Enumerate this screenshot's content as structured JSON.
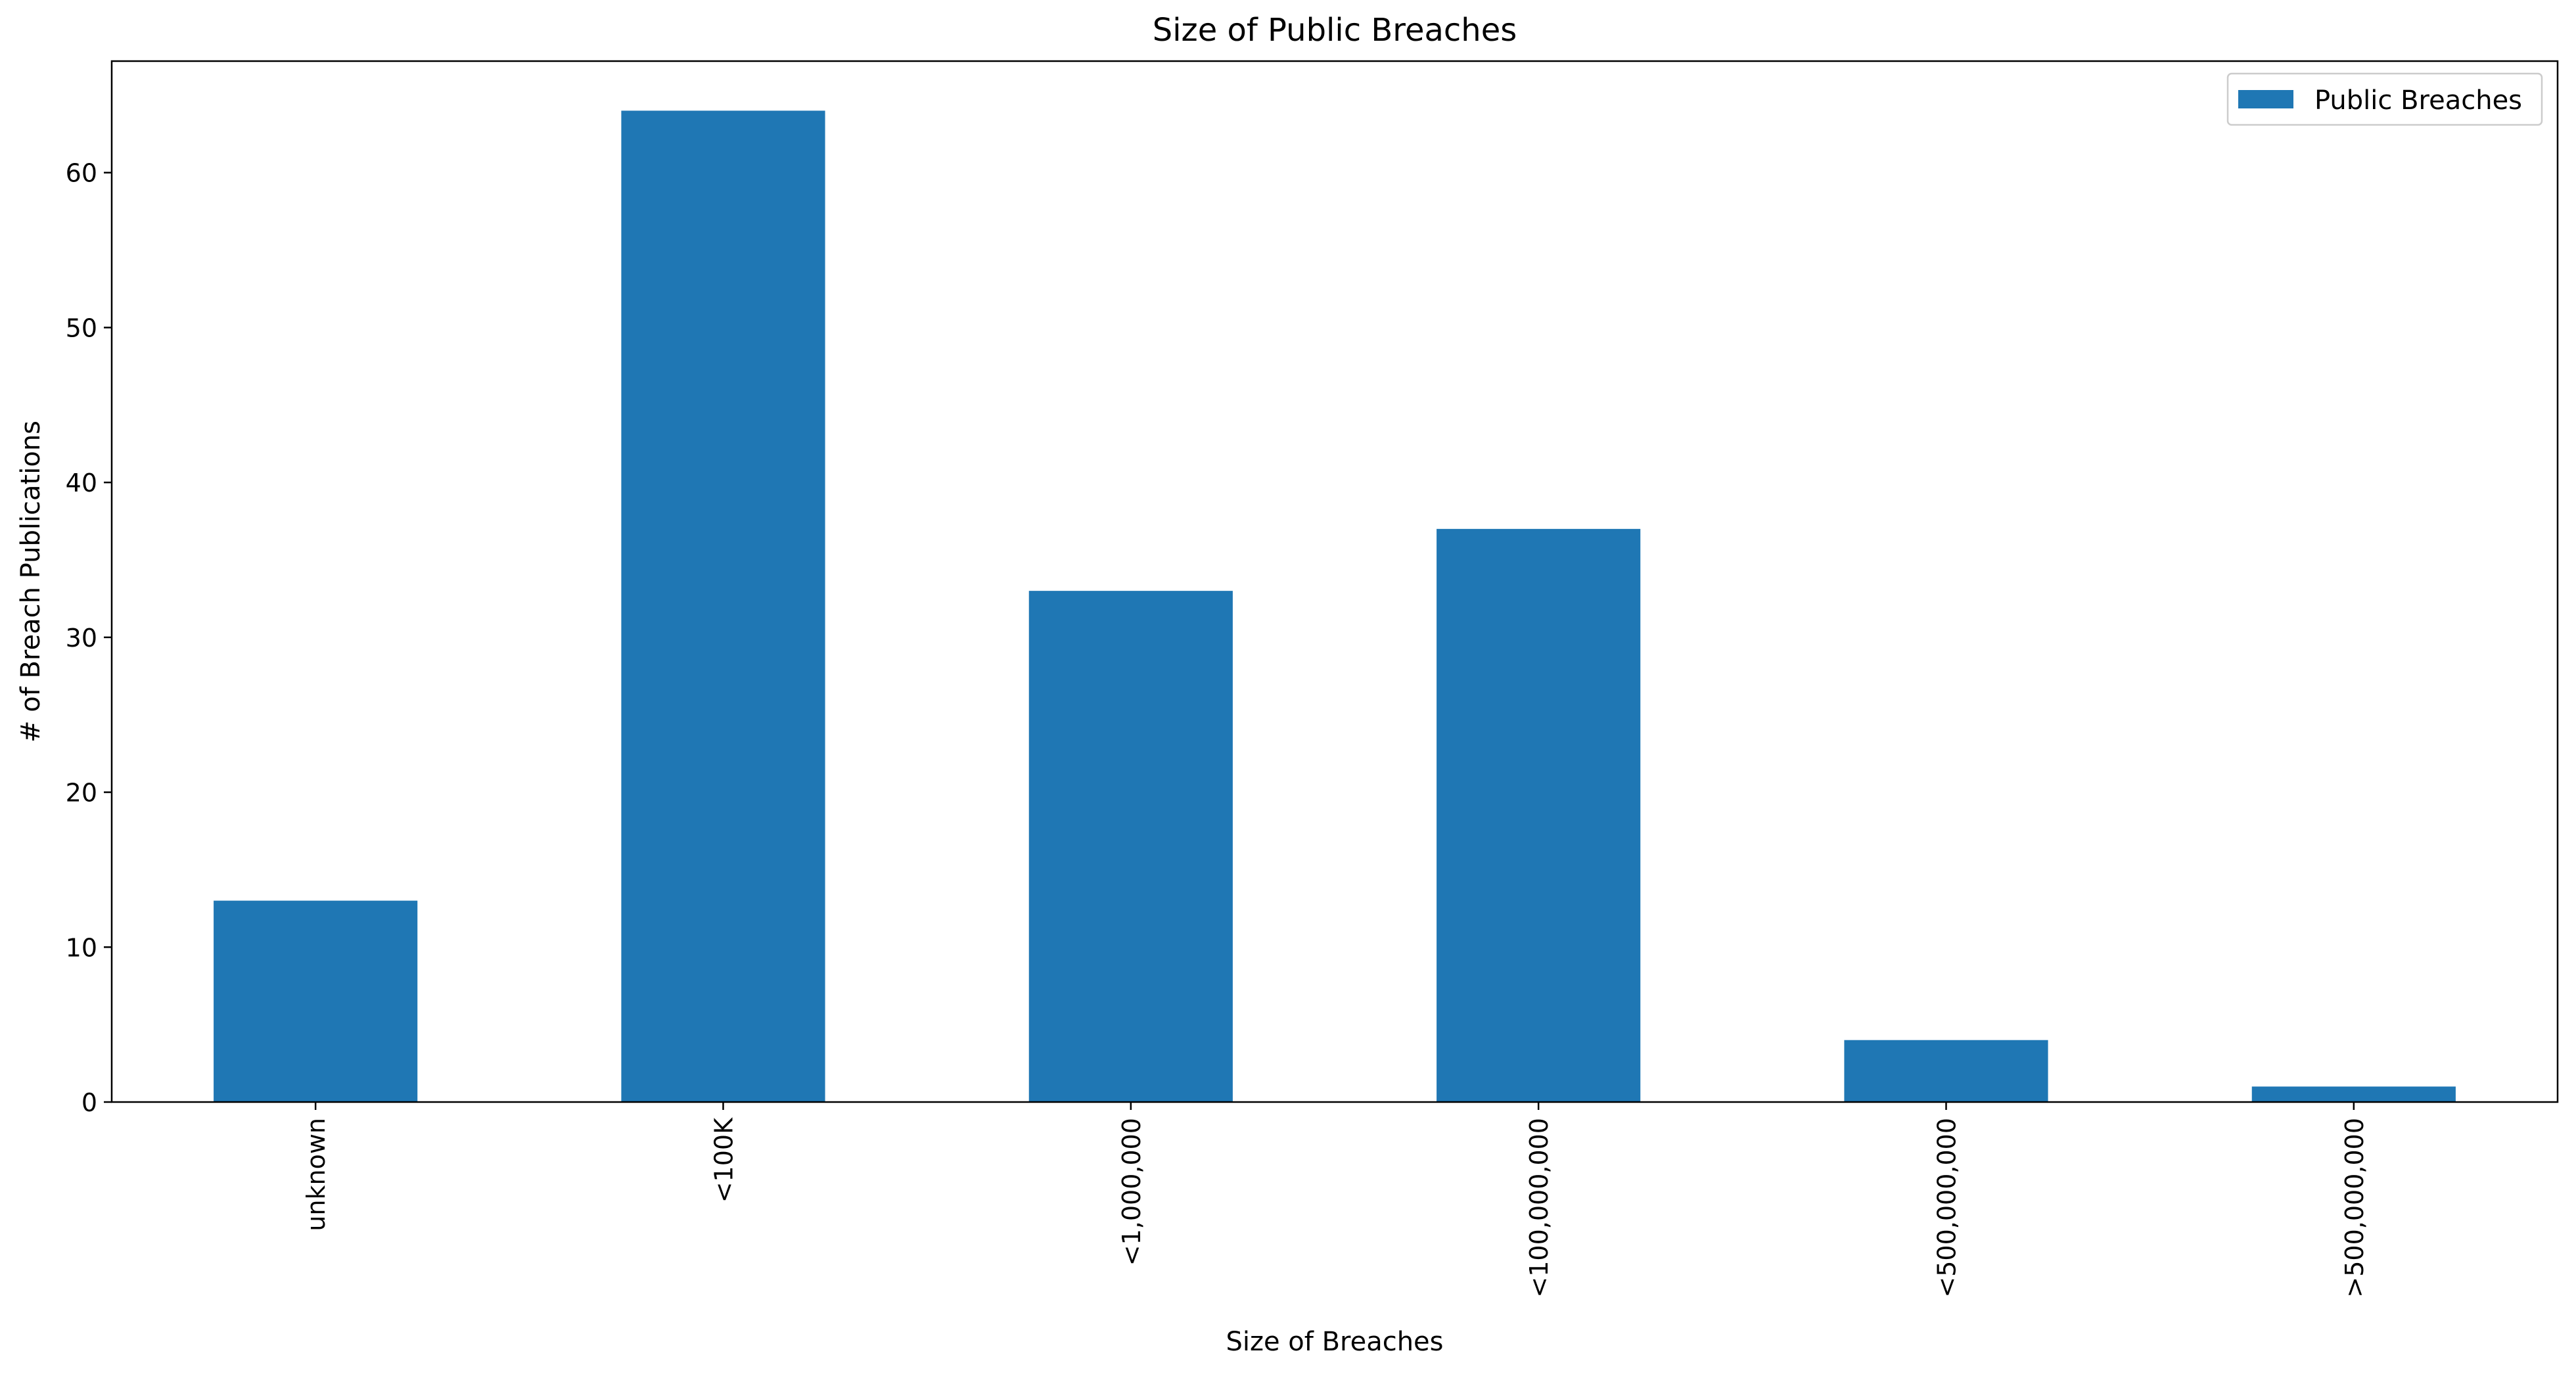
{
  "chart_data": {
    "type": "bar",
    "title": "Size of Public Breaches",
    "xlabel": "Size of Breaches",
    "ylabel": "# of Breach Publications",
    "categories": [
      "unknown",
      "<100K",
      "<1,000,000",
      "<100,000,000",
      "<500,000,000",
      ">500,000,000"
    ],
    "series": [
      {
        "name": "Public Breaches",
        "values": [
          13,
          64,
          33,
          37,
          4,
          1
        ],
        "color": "#1f77b4"
      }
    ],
    "ylim": [
      0,
      67.2
    ],
    "yticks": [
      0,
      10,
      20,
      30,
      40,
      50,
      60
    ],
    "ytick_labels": [
      "0",
      "10",
      "20",
      "30",
      "40",
      "50",
      "60"
    ],
    "x_tick_rotation": "vertical",
    "grid": false,
    "legend_position": "top-right"
  }
}
